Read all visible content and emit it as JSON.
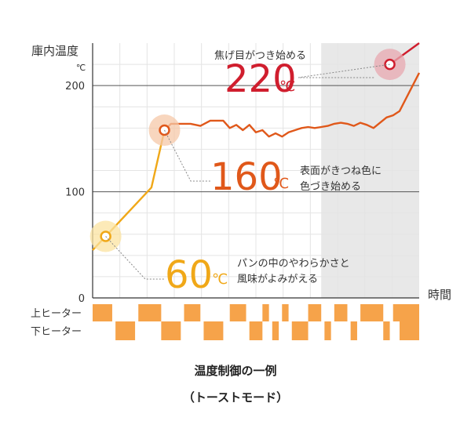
{
  "chart_data": {
    "type": "line",
    "ylabel": "庫内温度",
    "yunit": "℃",
    "xlabel": "時間",
    "yticks": [
      "0",
      "100",
      "200"
    ],
    "ytick_values": [
      0,
      100,
      200
    ],
    "ylim": [
      0,
      240
    ],
    "xlim": [
      0,
      100
    ],
    "shaded_x_range": [
      70,
      100
    ],
    "grid": true,
    "series": [
      {
        "color": "#f0a818",
        "points": [
          [
            0,
            45
          ],
          [
            4,
            58
          ],
          [
            18,
            104
          ],
          [
            22,
            158
          ]
        ]
      },
      {
        "color": "#e0581a",
        "points": [
          [
            22,
            158
          ],
          [
            24,
            164
          ],
          [
            30,
            164
          ],
          [
            33,
            162
          ],
          [
            36,
            167
          ],
          [
            40,
            167
          ],
          [
            42,
            160
          ],
          [
            44,
            163
          ],
          [
            46,
            158
          ],
          [
            48,
            163
          ],
          [
            50,
            156
          ],
          [
            52,
            158
          ],
          [
            54,
            152
          ],
          [
            56,
            155
          ],
          [
            58,
            152
          ],
          [
            60,
            156
          ],
          [
            62,
            158
          ],
          [
            64,
            160
          ],
          [
            66,
            161
          ],
          [
            68,
            160
          ],
          [
            70,
            161
          ],
          [
            72,
            162
          ],
          [
            74,
            164
          ],
          [
            76,
            165
          ],
          [
            78,
            164
          ],
          [
            80,
            162
          ],
          [
            82,
            165
          ],
          [
            84,
            163
          ],
          [
            86,
            160
          ],
          [
            88,
            165
          ],
          [
            90,
            170
          ],
          [
            92,
            172
          ],
          [
            94,
            176
          ],
          [
            97,
            194
          ],
          [
            100,
            212
          ]
        ]
      },
      {
        "color": "#d01e2e",
        "points": [
          [
            91,
            220
          ],
          [
            100,
            240
          ]
        ]
      }
    ],
    "annotations": [
      {
        "value": "60",
        "unit": "℃",
        "lines": [
          "パンの中のやわらかさと",
          "風味がよみがえる"
        ],
        "color": "#f0a818",
        "point": [
          4,
          58
        ]
      },
      {
        "value": "160",
        "unit": "℃",
        "lines": [
          "表面がきつね色に",
          "色づき始める"
        ],
        "color": "#e0581a",
        "point": [
          22,
          158
        ]
      },
      {
        "value": "220",
        "unit": "℃",
        "lines": [
          "焦げ目がつき始める"
        ],
        "color": "#d01e2e",
        "point": [
          91,
          220
        ]
      }
    ],
    "heaters": [
      {
        "label": "上ヒーター",
        "on": [
          [
            0,
            6
          ],
          [
            14,
            21
          ],
          [
            28,
            33
          ],
          [
            42,
            47
          ],
          [
            52,
            54
          ],
          [
            58,
            60
          ],
          [
            66,
            70
          ],
          [
            74,
            78
          ],
          [
            82,
            89
          ],
          [
            92,
            100
          ]
        ]
      },
      {
        "label": "下ヒーター",
        "on": [
          [
            7,
            13
          ],
          [
            21,
            27
          ],
          [
            34,
            40
          ],
          [
            48,
            52
          ],
          [
            55,
            57
          ],
          [
            61,
            66
          ],
          [
            71,
            73
          ],
          [
            79,
            81
          ],
          [
            89,
            91
          ],
          [
            94,
            100
          ]
        ]
      }
    ],
    "heater_color": "#f6a34a"
  },
  "caption": {
    "title": "温度制御の一例",
    "subtitle": "（トーストモード）"
  }
}
